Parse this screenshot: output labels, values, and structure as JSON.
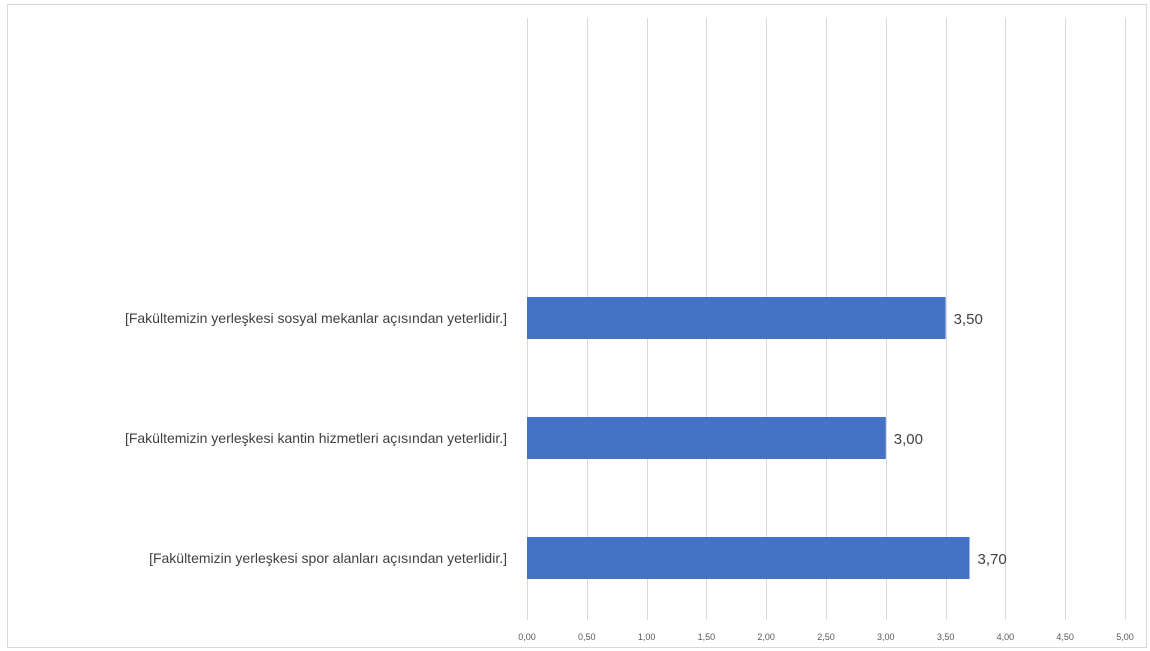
{
  "chart_data": {
    "type": "bar",
    "orientation": "horizontal",
    "categories": [
      "[Fakültemizin yerleşkesi sosyal mekanlar açısından yeterlidir.]",
      "[Fakültemizin yerleşkesi kantin hizmetleri açısından yeterlidir.]",
      "[Fakültemizin yerleşkesi spor alanları açısından yeterlidir.]"
    ],
    "values": [
      3.5,
      3.0,
      3.7
    ],
    "value_labels": [
      "3,50",
      "3,00",
      "3,70"
    ],
    "xlim": [
      0,
      5
    ],
    "x_ticks": [
      0,
      0.5,
      1,
      1.5,
      2,
      2.5,
      3,
      3.5,
      4,
      4.5,
      5
    ],
    "x_tick_labels": [
      "0,00",
      "0,50",
      "1,00",
      "1,50",
      "2,00",
      "2,50",
      "3,00",
      "3,50",
      "4,00",
      "4,50",
      "5,00"
    ],
    "grid": true,
    "legend": "none",
    "bar_color": "#4472c4",
    "title": "",
    "xlabel": "",
    "ylabel": ""
  }
}
